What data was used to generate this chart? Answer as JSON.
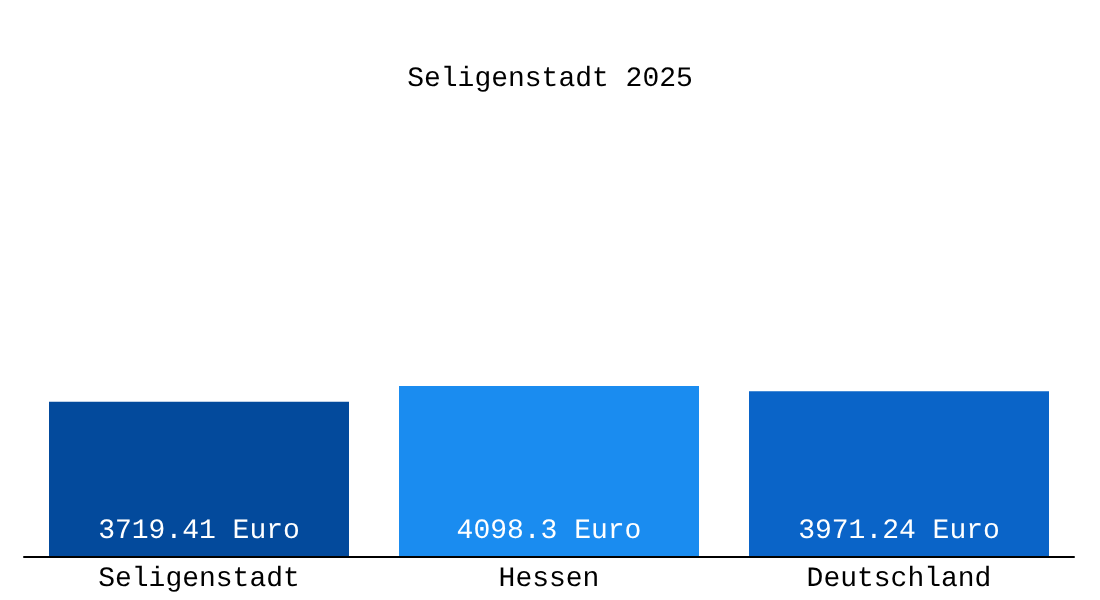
{
  "chart_data": {
    "type": "bar",
    "title": "Seligenstadt 2025",
    "categories": [
      "Seligenstadt",
      "Hessen",
      "Deutschland"
    ],
    "values": [
      3719.41,
      4098.3,
      3971.24
    ],
    "colors": [
      "#034a9c",
      "#1a8cf0",
      "#0a64c8"
    ],
    "value_labels": [
      "3719.41 Euro",
      "4098.3 Euro",
      "3971.24 Euro"
    ]
  }
}
